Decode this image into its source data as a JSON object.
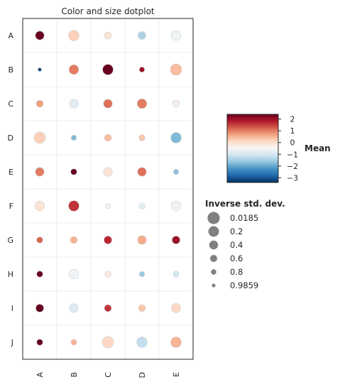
{
  "chart_data": {
    "type": "scatter",
    "title": "Color and size dotplot",
    "rows": [
      "A",
      "B",
      "C",
      "D",
      "E",
      "F",
      "G",
      "H",
      "I",
      "J"
    ],
    "cols": [
      "A",
      "B",
      "C",
      "D",
      "E"
    ],
    "color_values": [
      [
        3.0,
        0.2,
        -0.1,
        -1.4,
        -0.6
      ],
      [
        -3.2,
        1.0,
        2.8,
        2.0,
        0.4
      ],
      [
        0.7,
        -0.8,
        1.1,
        1.0,
        -0.3
      ],
      [
        0.2,
        -1.8,
        0.4,
        0.3,
        -1.8
      ],
      [
        1.0,
        2.6,
        -0.1,
        1.1,
        -1.7
      ],
      [
        -0.1,
        1.6,
        -0.6,
        -0.8,
        -0.6
      ],
      [
        1.2,
        0.5,
        1.7,
        0.6,
        2.0
      ],
      [
        2.9,
        -0.6,
        -0.2,
        -1.6,
        -1.0
      ],
      [
        2.7,
        -0.9,
        1.6,
        0.3,
        0.1
      ],
      [
        2.7,
        0.5,
        0.1,
        -1.2,
        0.5
      ]
    ],
    "size_values": [
      [
        0.4,
        0.2,
        0.6,
        0.5,
        0.3
      ],
      [
        0.9859,
        0.3,
        0.2,
        0.8,
        0.1
      ],
      [
        0.6,
        0.4,
        0.4,
        0.3,
        0.6
      ],
      [
        0.1,
        0.8,
        0.6,
        0.7,
        0.2
      ],
      [
        0.4,
        0.7,
        0.4,
        0.4,
        0.8
      ],
      [
        0.3,
        0.2,
        0.8,
        0.7,
        0.3
      ],
      [
        0.7,
        0.6,
        0.5,
        0.4,
        0.5
      ],
      [
        0.7,
        0.3,
        0.7,
        0.8,
        0.75
      ],
      [
        0.5,
        0.4,
        0.6,
        0.6,
        0.35
      ],
      [
        0.7,
        0.75,
        0.1,
        0.2,
        0.2
      ]
    ],
    "colorbar": {
      "label": "Mean",
      "min": -3.4,
      "max": 2.4,
      "ticks": [
        2,
        1,
        0,
        -1,
        -2,
        -3
      ],
      "tick_labels": [
        "2",
        "1",
        "0",
        "−1",
        "−2",
        "−3"
      ]
    },
    "size_legend": {
      "title": "Inverse std. dev.",
      "values": [
        0.0185,
        0.2,
        0.4,
        0.6,
        0.8,
        0.9859
      ],
      "labels": [
        "0.0185",
        "0.2",
        "0.4",
        "0.6",
        "0.8",
        "0.9859"
      ],
      "marker_color": "#808080"
    },
    "colormap": "RdBu_r",
    "grid": true
  }
}
